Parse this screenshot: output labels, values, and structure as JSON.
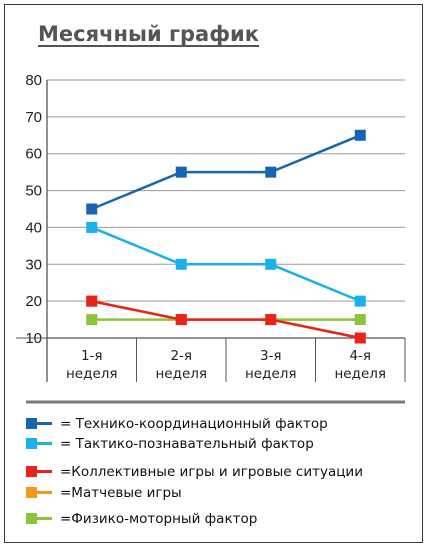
{
  "chart_data": {
    "type": "line",
    "title": "Месячный график",
    "categories": [
      "1-я неделя",
      "2-я неделя",
      "3-я неделя",
      "4-я неделя"
    ],
    "ylim": [
      10,
      80
    ],
    "yticks": [
      10,
      20,
      30,
      40,
      50,
      60,
      70,
      80
    ],
    "grid": true,
    "legend_position": "bottom",
    "series": [
      {
        "name": "= Технико-координационный фактор",
        "color": "#1565b0",
        "values": [
          45,
          55,
          55,
          65
        ]
      },
      {
        "name": "= Тактико-познавательный фактор",
        "color": "#1ab0e8",
        "values": [
          40,
          30,
          30,
          20
        ]
      },
      {
        "name": "=Коллективные игры и игровые ситуации",
        "color": "#e8231e",
        "values": [
          20,
          15,
          15,
          10
        ]
      },
      {
        "name": "=Матчевые игры",
        "color": "#f5961e",
        "values": [
          20,
          15,
          15,
          10
        ]
      },
      {
        "name": "=Физико-моторный фактор",
        "color": "#8cc43c",
        "values": [
          15,
          15,
          15,
          15
        ]
      }
    ]
  }
}
